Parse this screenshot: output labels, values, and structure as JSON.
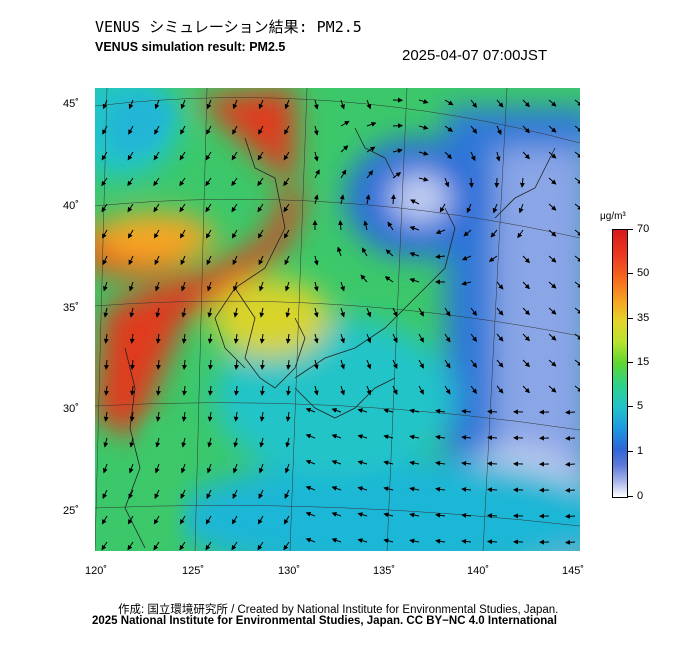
{
  "title_jp": "VENUS シミュレーション結果: PM2.5",
  "title_en": "VENUS simulation result: PM2.5",
  "timestamp": "2025-04-07 07:00JST",
  "map": {
    "lat_labels": [
      "45˚",
      "40˚",
      "35˚",
      "30˚",
      "25˚"
    ],
    "lon_labels": [
      "120˚",
      "125˚",
      "130˚",
      "135˚",
      "140˚",
      "145˚"
    ]
  },
  "colorbar": {
    "unit": "μg/m³",
    "labels": [
      "70",
      "50",
      "35",
      "15",
      "5",
      "1",
      "0"
    ],
    "colors": [
      "#d7191c",
      "#f6a623",
      "#e5d42a",
      "#5dd631",
      "#22c4c8",
      "#2d66d8",
      "#ffffff"
    ]
  },
  "credit_jp": "作成: 国立環境研究所 / Created by National Institute for Environmental Studies, Japan.",
  "credit_en": "2025 National Institute for Environmental Studies, Japan. CC BY−NC 4.0 International"
}
